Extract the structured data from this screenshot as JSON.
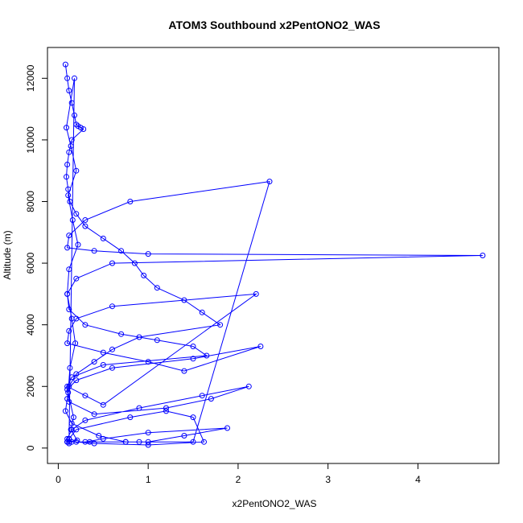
{
  "chart_data": {
    "type": "line",
    "title": "ATOM3 Southbound x2PentONO2_WAS",
    "xlabel": "x2PentONO2_WAS",
    "ylabel": "Altitude (m)",
    "xlim": [
      -0.12,
      4.9
    ],
    "ylim": [
      -500,
      13000
    ],
    "x_ticks": [
      0,
      1,
      2,
      3,
      4
    ],
    "x_tick_labels": [
      "0",
      "1",
      "2",
      "3",
      "4"
    ],
    "y_ticks": [
      0,
      2000,
      4000,
      6000,
      8000,
      10000,
      12000
    ],
    "y_tick_labels": [
      "0",
      "2000",
      "4000",
      "6000",
      "8000",
      "10000",
      "12000"
    ],
    "grid": false,
    "legend": "none",
    "colors": {
      "series": "#0000ff",
      "axis": "#000000"
    },
    "series": [
      {
        "markers": "open-circle",
        "x": [
          0.08,
          0.1,
          0.12,
          0.15,
          0.18,
          0.2,
          0.22,
          0.25,
          0.28,
          0.15,
          0.12,
          0.1,
          0.09,
          0.11,
          0.13,
          0.2,
          0.3,
          0.5,
          0.7,
          0.85,
          0.95,
          1.1,
          1.4,
          1.6,
          1.8,
          0.9,
          0.6,
          0.4,
          0.2,
          0.12,
          0.1,
          0.08,
          0.15,
          0.45,
          0.75,
          0.9,
          1.5,
          2.35,
          0.8,
          0.3,
          0.12,
          0.1,
          0.4,
          1.0,
          4.72,
          0.6,
          0.2,
          0.1,
          0.12,
          0.3,
          0.7,
          1.1,
          1.5,
          1.65,
          0.5,
          0.15,
          0.1,
          0.3,
          0.5,
          2.2,
          0.6,
          0.2,
          0.12,
          0.1,
          0.5,
          1.0,
          1.4,
          2.25,
          1.5,
          0.6,
          0.2,
          0.1,
          0.12,
          0.4,
          1.2,
          1.7,
          2.12,
          1.6,
          0.9,
          0.3,
          0.15,
          0.1,
          0.12,
          0.35,
          0.75,
          1.0,
          1.4,
          1.88,
          1.0,
          0.5,
          0.3,
          0.15,
          0.1,
          0.12,
          0.2,
          0.8,
          1.2,
          1.5,
          1.62,
          1.0,
          0.4,
          0.2,
          0.1,
          0.12,
          0.18,
          0.09,
          0.14,
          0.2,
          0.11,
          0.16,
          0.22,
          0.12,
          0.1,
          0.15,
          0.19,
          0.13,
          0.11,
          0.17,
          0.14,
          0.21,
          0.1,
          0.12
        ],
        "y": [
          12450,
          12000,
          11600,
          11200,
          10800,
          10500,
          10450,
          10400,
          10350,
          10000,
          9600,
          9200,
          8800,
          8400,
          8000,
          7600,
          7200,
          6800,
          6400,
          6000,
          5600,
          5200,
          4800,
          4400,
          4000,
          3600,
          3200,
          2800,
          2400,
          2000,
          1600,
          1200,
          800,
          400,
          200,
          200,
          200,
          8650,
          8000,
          7400,
          6900,
          6500,
          6400,
          6300,
          6250,
          6000,
          5500,
          5000,
          4500,
          4000,
          3700,
          3500,
          3300,
          3000,
          2700,
          2300,
          2000,
          1700,
          1400,
          5000,
          4600,
          4200,
          3800,
          3400,
          3100,
          2800,
          2500,
          3300,
          2900,
          2600,
          2200,
          1900,
          1500,
          1100,
          1300,
          1600,
          2000,
          1700,
          1300,
          900,
          600,
          300,
          200,
          200,
          200,
          200,
          400,
          650,
          500,
          300,
          200,
          200,
          200,
          300,
          600,
          1000,
          1200,
          1000,
          200,
          100,
          150,
          200,
          200,
          300,
          12000,
          10400,
          9800,
          9000,
          8200,
          7400,
          6600,
          5800,
          5000,
          4200,
          3400,
          2600,
          1800,
          1000,
          600,
          250,
          200,
          150
        ]
      }
    ]
  }
}
